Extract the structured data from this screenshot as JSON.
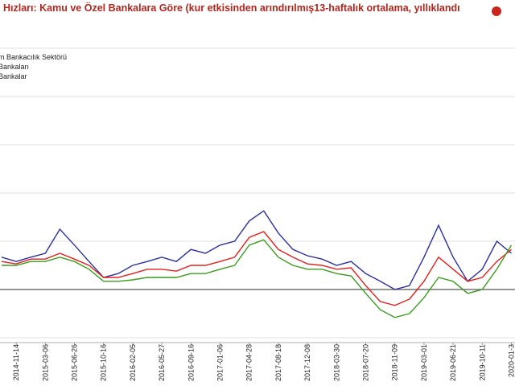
{
  "chart_data": {
    "type": "line",
    "title": "Hızları: Kamu ve Özel Bankalara Göre (kur etkisinden arındırılmış13-haftalık ortalama, yıllıklandı",
    "categories": [
      null,
      "2014-11-14",
      null,
      "2015-03-06",
      null,
      "2015-06-26",
      null,
      "2015-10-16",
      null,
      "2016-02-05",
      null,
      "2016-05-27",
      null,
      "2016-09-16",
      null,
      "2017-01-06",
      null,
      "2017-04-28",
      null,
      "2017-08-18",
      null,
      "2017-12-08",
      null,
      "2018-03-30",
      null,
      "2018-07-20",
      null,
      "2018-11-09",
      null,
      "2019-03-01",
      null,
      "2019-06-21",
      null,
      "2019-10-11",
      null,
      "2020-01-3"
    ],
    "series": [
      {
        "name": "m Bankacılık Sektörü",
        "color": "#2b2f9e",
        "values": [
          6.7,
          5.8,
          6.7,
          7.5,
          12.5,
          9.2,
          5.8,
          2.5,
          3.3,
          5,
          5.8,
          6.7,
          5.8,
          8.3,
          7.5,
          9.2,
          10,
          14.2,
          16.3,
          11.7,
          8.3,
          7,
          6.3,
          5,
          5.8,
          3.3,
          1.7,
          0,
          0.8,
          6.7,
          13.3,
          6.7,
          1.7,
          4.2,
          10,
          7.5
        ]
      },
      {
        "name": "Bankaları",
        "color": "#e0201c",
        "values": [
          5.8,
          5.3,
          6.3,
          6.3,
          7.5,
          6.3,
          5,
          2.5,
          2.5,
          3.3,
          4.2,
          4.2,
          3.8,
          5,
          5,
          5.8,
          6.7,
          10.8,
          12,
          8.3,
          6.7,
          5.3,
          5,
          4.2,
          4.5,
          0.8,
          -2.5,
          -3.3,
          -2,
          1.7,
          6.7,
          4.2,
          1.7,
          2.5,
          5.8,
          8.3
        ]
      },
      {
        "name": "Bankalar",
        "color": "#3a9c1c",
        "values": [
          5,
          5,
          5.8,
          5.8,
          6.7,
          5.8,
          4.2,
          1.7,
          1.7,
          2,
          2.5,
          2.5,
          2.5,
          3.3,
          3.3,
          4.2,
          5,
          9.2,
          10.3,
          6.7,
          5,
          4.2,
          4.2,
          3.3,
          2.8,
          -0.8,
          -4.2,
          -5.8,
          -5,
          -1.7,
          2.5,
          1.7,
          -0.8,
          0,
          4.2,
          9.2
        ]
      }
    ],
    "ylim": [
      -11,
      52.5
    ],
    "yticks": [
      -10,
      0,
      10,
      20,
      30,
      40,
      50
    ],
    "grid": true
  }
}
